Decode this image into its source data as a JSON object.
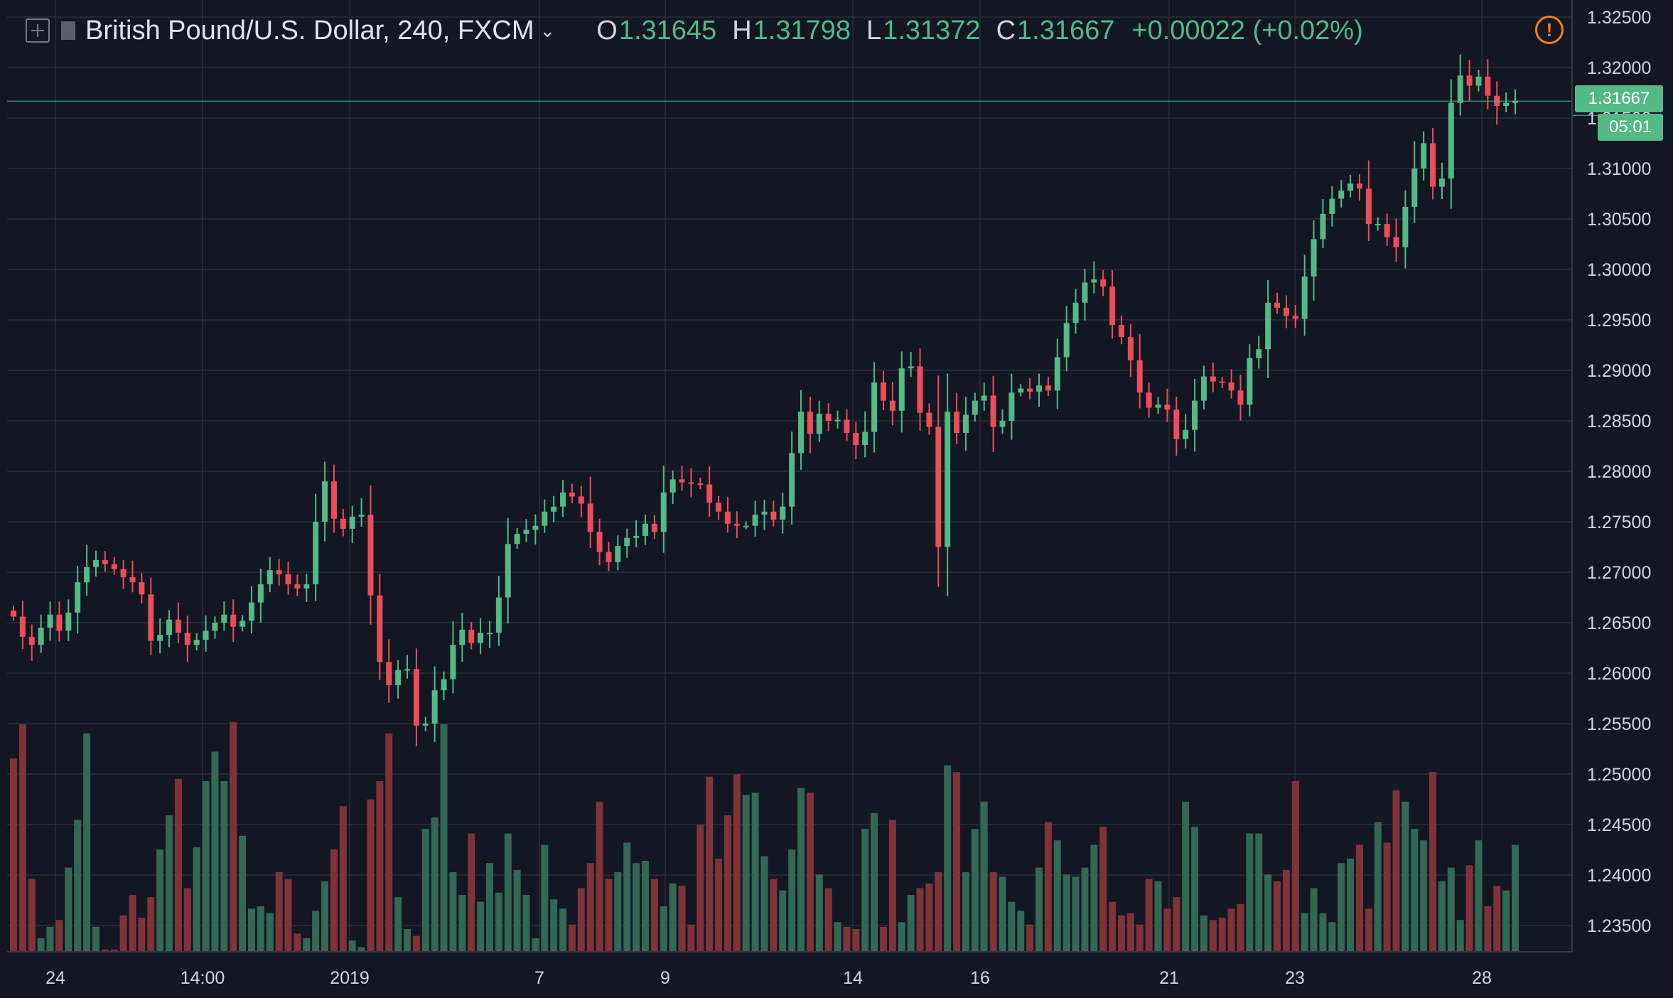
{
  "header": {
    "symbol": "British Pound/U.S. Dollar, 240, FXCM",
    "chevron": "⌄",
    "o_label": "O",
    "o_value": "1.31645",
    "h_label": "H",
    "h_value": "1.31798",
    "l_label": "L",
    "l_value": "1.31372",
    "c_label": "C",
    "c_value": "1.31667",
    "change": "+0.00022 (+0.02%)",
    "warning_icon": "!"
  },
  "price_tag": "1.31667",
  "countdown": "05:01",
  "colors": {
    "background": "#131722",
    "grid": "#2a2e39",
    "up": "#53b987",
    "down": "#eb4d5c",
    "vol_up": "#336854",
    "vol_down": "#7f323a",
    "warn": "#f57f17"
  },
  "chart_data": {
    "type": "candlestick",
    "timeframe": "240",
    "ylim": [
      1.2325,
      1.3255
    ],
    "y_ticks": [
      "1.32500",
      "1.32000",
      "1.31500",
      "1.31000",
      "1.30500",
      "1.30000",
      "1.29500",
      "1.29000",
      "1.28500",
      "1.28000",
      "1.27500",
      "1.27000",
      "1.26500",
      "1.26000",
      "1.25500",
      "1.25000",
      "1.24500",
      "1.24000",
      "1.23500"
    ],
    "x_ticks": [
      "24",
      "14:00",
      "2019",
      "7",
      "9",
      "14",
      "16",
      "21",
      "23",
      "28"
    ],
    "last_price": 1.31667,
    "close": [
      1.2656,
      1.2636,
      1.2628,
      1.2645,
      1.2658,
      1.2642,
      1.266,
      1.269,
      1.2705,
      1.2712,
      1.2708,
      1.2703,
      1.2695,
      1.269,
      1.2678,
      1.2632,
      1.2638,
      1.2653,
      1.264,
      1.2628,
      1.2633,
      1.2642,
      1.265,
      1.2658,
      1.2646,
      1.2652,
      1.267,
      1.2688,
      1.2702,
      1.2698,
      1.2688,
      1.2684,
      1.2688,
      1.275,
      1.279,
      1.2753,
      1.2743,
      1.2755,
      1.2757,
      1.2677,
      1.2611,
      1.2588,
      1.2603,
      1.2604,
      1.2548,
      1.255,
      1.2583,
      1.2594,
      1.2628,
      1.2643,
      1.263,
      1.264,
      1.264,
      1.2675,
      1.2728,
      1.2738,
      1.2742,
      1.2746,
      1.276,
      1.2765,
      1.2779,
      1.2775,
      1.2768,
      1.274,
      1.272,
      1.271,
      1.2726,
      1.2734,
      1.2736,
      1.2748,
      1.274,
      1.2779,
      1.2792,
      1.2789,
      1.2788,
      1.2787,
      1.2769,
      1.276,
      1.2748,
      1.2746,
      1.2746,
      1.2757,
      1.276,
      1.2752,
      1.2765,
      1.2818,
      1.2859,
      1.2837,
      1.2857,
      1.285,
      1.2851,
      1.2838,
      1.2826,
      1.2839,
      1.2888,
      1.287,
      1.286,
      1.2902,
      1.2904,
      1.2858,
      1.2844,
      1.2725,
      1.2859,
      1.2838,
      1.2856,
      1.287,
      1.2875,
      1.2844,
      1.285,
      1.2878,
      1.2882,
      1.2879,
      1.2885,
      1.288,
      1.2913,
      1.2947,
      1.2967,
      1.2987,
      1.299,
      1.2983,
      1.2945,
      1.2933,
      1.291,
      1.2878,
      1.2863,
      1.2866,
      1.2861,
      1.2832,
      1.2841,
      1.287,
      1.2894,
      1.2889,
      1.2888,
      1.288,
      1.2866,
      1.2912,
      1.2921,
      1.2967,
      1.2962,
      1.2954,
      1.2951,
      1.2993,
      1.303,
      1.3055,
      1.307,
      1.3078,
      1.3085,
      1.308,
      1.3045,
      1.3045,
      1.3032,
      1.3022,
      1.3062,
      1.31,
      1.3125,
      1.3082,
      1.309,
      1.3165,
      1.3192,
      1.3182,
      1.3191,
      1.3172,
      1.3162,
      1.3165,
      1.3167
    ],
    "volume": [
      85,
      100,
      32,
      6,
      11,
      14,
      37,
      58,
      96,
      11,
      1,
      1,
      16,
      25,
      15,
      24,
      45,
      60,
      76,
      28,
      46,
      75,
      88,
      75,
      101,
      51,
      19,
      20,
      17,
      35,
      32,
      8,
      6,
      18,
      31,
      45,
      64,
      5,
      2,
      67,
      75,
      96,
      24,
      10,
      7,
      54,
      59,
      100,
      35,
      25,
      52,
      22,
      39,
      26,
      52,
      36,
      25,
      6,
      47,
      23,
      19,
      12,
      28,
      39,
      66,
      32,
      35,
      48,
      39,
      40,
      32,
      20,
      30,
      29,
      12,
      56,
      77,
      41,
      60,
      78,
      69,
      70,
      42,
      32,
      27,
      45,
      72,
      70,
      34,
      28,
      13,
      11,
      10,
      54,
      61,
      11,
      58,
      13,
      25,
      28,
      30,
      35,
      82,
      79,
      35,
      54,
      66,
      35,
      33,
      22,
      18,
      12,
      37,
      57,
      49,
      34,
      33,
      37,
      47,
      55,
      22,
      16,
      17,
      12,
      32,
      31,
      19,
      24,
      66,
      55,
      16,
      14,
      15,
      19,
      21,
      52,
      52,
      34,
      31,
      36,
      75,
      17,
      28,
      17,
      13,
      39,
      41,
      47,
      19,
      57,
      48,
      71,
      66,
      54,
      49,
      79,
      31,
      37,
      14,
      38,
      49,
      20,
      29,
      27,
      47
    ]
  }
}
